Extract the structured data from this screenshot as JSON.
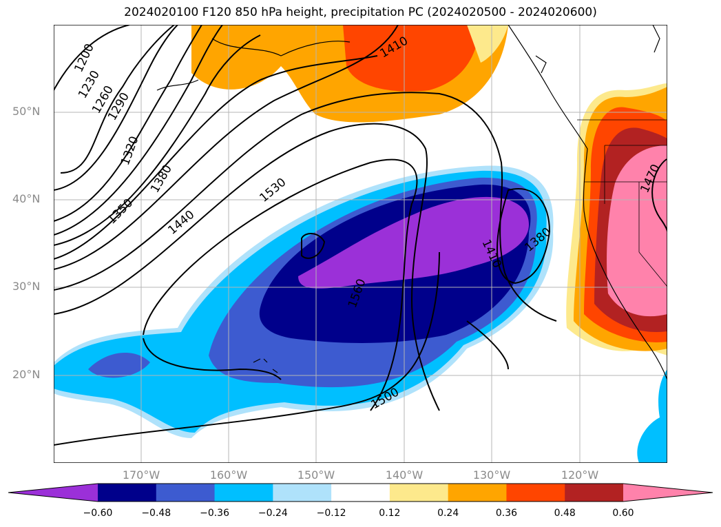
{
  "title": "2024020100 F120 850 hPa height, precipitation PC (2024020500 - 2024020600)",
  "latitude_labels": [
    "50°N",
    "40°N",
    "30°N",
    "20°N"
  ],
  "longitude_labels": [
    "170°W",
    "160°W",
    "150°W",
    "140°W",
    "130°W",
    "120°W"
  ],
  "contour_labels": [
    "1200",
    "1230",
    "1260",
    "1290",
    "1320",
    "1350",
    "1380",
    "1440",
    "1530",
    "1410",
    "1560",
    "1410",
    "1380",
    "1500",
    "1470"
  ],
  "colorbar": {
    "colors": [
      "#9b30d8",
      "#00008b",
      "#3d5bd0",
      "#00bfff",
      "#afe2fb",
      "#ffffff",
      "#fde98c",
      "#ffa500",
      "#ff4500",
      "#b22222",
      "#ff82ab"
    ],
    "labels": [
      "−0.60",
      "−0.48",
      "−0.36",
      "−0.24",
      "−0.12",
      "0.12",
      "0.24",
      "0.36",
      "0.48",
      "0.60"
    ]
  }
}
